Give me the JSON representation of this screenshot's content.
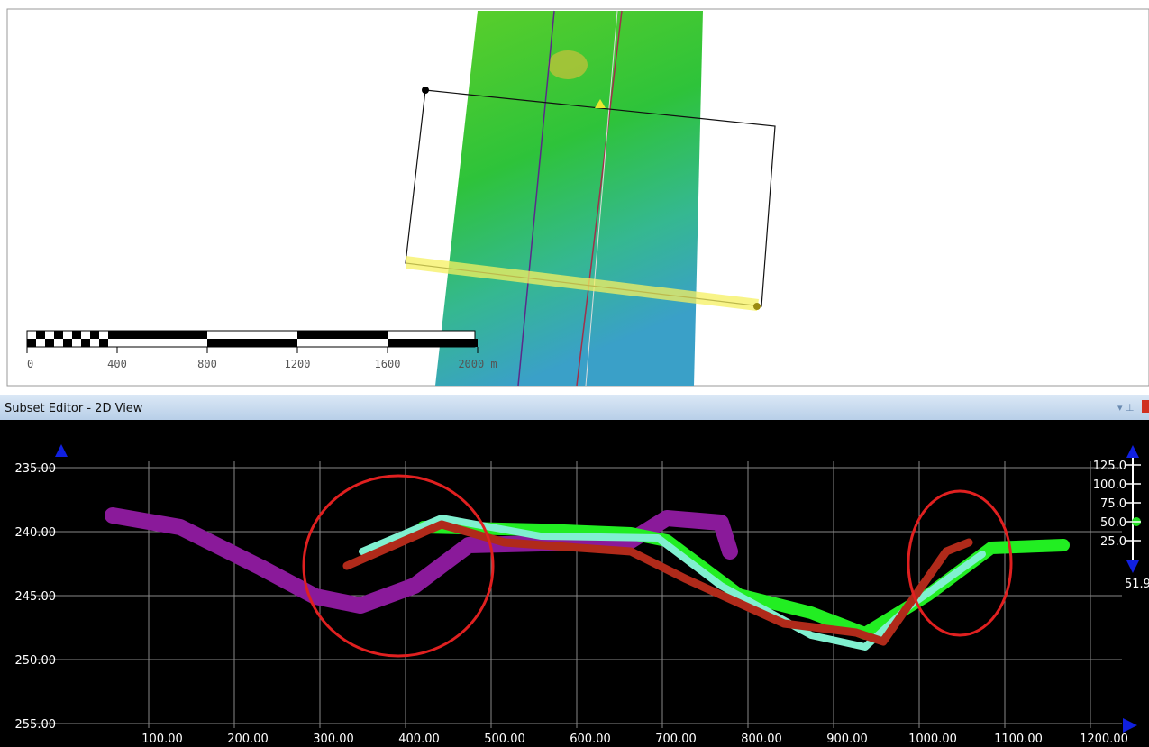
{
  "map": {
    "scale_labels": [
      "0",
      "400",
      "800",
      "1200",
      "1600",
      "2000 m"
    ]
  },
  "panel": {
    "title": "Subset Editor - 2D View"
  },
  "plot": {
    "yticks": [
      "235.00",
      "240.00",
      "245.00",
      "250.00",
      "255.00"
    ],
    "xticks": [
      "100.00",
      "200.00",
      "300.00",
      "400.00",
      "500.00",
      "600.00",
      "700.00",
      "800.00",
      "900.00",
      "1000.00",
      "1100.00",
      "1200.00"
    ],
    "zoom_ticks": [
      "125.0",
      "100.0",
      "75.0",
      "50.0",
      "25.0"
    ],
    "zoom_value": "51.9"
  }
}
